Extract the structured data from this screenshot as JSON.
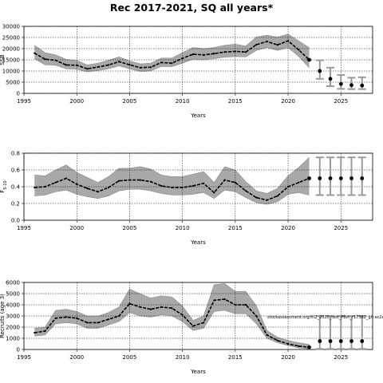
{
  "title": "Rec 2017-2021, SQ all years*",
  "chart_data": [
    {
      "type": "line",
      "xlabel": "Years",
      "ylabel": "SSB",
      "ylabel_sub": "",
      "xlim": [
        1995,
        2028
      ],
      "ylim": [
        0,
        30000
      ],
      "xticks": [
        1995,
        2000,
        2005,
        2010,
        2015,
        2020,
        2025
      ],
      "yticks": [
        0,
        5000,
        10000,
        15000,
        20000,
        25000,
        30000
      ],
      "grid": true,
      "annotation": "",
      "historical": {
        "x": [
          1996,
          1997,
          1998,
          1999,
          2000,
          2001,
          2002,
          2003,
          2004,
          2005,
          2006,
          2007,
          2008,
          2009,
          2010,
          2011,
          2012,
          2013,
          2014,
          2015,
          2016,
          2017,
          2018,
          2019,
          2020,
          2021,
          2022
        ],
        "y": [
          18000,
          15300,
          14800,
          12700,
          12600,
          11000,
          11800,
          12700,
          14200,
          12800,
          11500,
          11700,
          13800,
          13500,
          15700,
          17500,
          17200,
          17800,
          18500,
          18800,
          18500,
          21800,
          23200,
          21700,
          23500,
          19500,
          15000
        ],
        "lower": [
          15500,
          12800,
          12600,
          11000,
          10800,
          9600,
          10200,
          11000,
          12300,
          11000,
          9800,
          10000,
          12000,
          12000,
          13500,
          15300,
          15000,
          15500,
          16200,
          16500,
          16300,
          19200,
          20500,
          19200,
          20500,
          16500,
          11500
        ],
        "upper": [
          21500,
          18200,
          17200,
          15200,
          14700,
          12700,
          13500,
          14800,
          16300,
          14500,
          13200,
          13500,
          15800,
          15800,
          18200,
          20500,
          20000,
          20500,
          21500,
          22000,
          21200,
          25200,
          26000,
          25200,
          26500,
          23500,
          20500
        ]
      },
      "projection": {
        "x": [
          2022,
          2023,
          2024,
          2025,
          2026,
          2027
        ],
        "y": [
          15000,
          10000,
          6500,
          4200,
          3700,
          3500
        ],
        "lower": [
          11500,
          6500,
          3200,
          2000,
          1900,
          1900
        ],
        "upper": [
          20500,
          14800,
          11500,
          8200,
          7000,
          7200
        ]
      }
    },
    {
      "type": "line",
      "xlabel": "Years",
      "ylabel": "F",
      "ylabel_sub": "5-10",
      "xlim": [
        1995,
        2028
      ],
      "ylim": [
        0,
        0.8
      ],
      "xticks": [
        1995,
        2000,
        2005,
        2010,
        2015,
        2020,
        2025
      ],
      "yticks": [
        0.0,
        0.2,
        0.4,
        0.6,
        0.8
      ],
      "grid": true,
      "annotation": "",
      "historical": {
        "x": [
          1996,
          1997,
          1998,
          1999,
          2000,
          2001,
          2002,
          2003,
          2004,
          2005,
          2006,
          2007,
          2008,
          2009,
          2010,
          2011,
          2012,
          2013,
          2014,
          2015,
          2016,
          2017,
          2018,
          2019,
          2020,
          2021,
          2022
        ],
        "y": [
          0.39,
          0.4,
          0.45,
          0.5,
          0.43,
          0.38,
          0.34,
          0.39,
          0.47,
          0.48,
          0.48,
          0.46,
          0.41,
          0.39,
          0.39,
          0.41,
          0.44,
          0.33,
          0.48,
          0.45,
          0.35,
          0.27,
          0.24,
          0.29,
          0.4,
          0.45,
          0.5
        ],
        "lower": [
          0.29,
          0.3,
          0.34,
          0.36,
          0.31,
          0.28,
          0.26,
          0.29,
          0.35,
          0.37,
          0.37,
          0.35,
          0.32,
          0.3,
          0.3,
          0.31,
          0.33,
          0.26,
          0.36,
          0.34,
          0.27,
          0.21,
          0.19,
          0.22,
          0.31,
          0.33,
          0.3
        ],
        "upper": [
          0.54,
          0.53,
          0.6,
          0.66,
          0.57,
          0.51,
          0.45,
          0.52,
          0.62,
          0.62,
          0.64,
          0.61,
          0.54,
          0.52,
          0.52,
          0.55,
          0.58,
          0.45,
          0.64,
          0.6,
          0.46,
          0.35,
          0.32,
          0.38,
          0.53,
          0.63,
          0.75
        ]
      },
      "projection": {
        "x": [
          2022,
          2023,
          2024,
          2025,
          2026,
          2027
        ],
        "y": [
          0.5,
          0.5,
          0.5,
          0.5,
          0.5,
          0.5
        ],
        "lower": [
          0.3,
          0.3,
          0.3,
          0.3,
          0.3,
          0.3
        ],
        "upper": [
          0.75,
          0.75,
          0.75,
          0.75,
          0.75,
          0.75
        ]
      }
    },
    {
      "type": "line",
      "xlabel": "Years",
      "ylabel": "Recruits (age 3)",
      "ylabel_sub": "",
      "xlim": [
        1995,
        2028
      ],
      "ylim": [
        0,
        6000
      ],
      "xticks": [
        1995,
        2000,
        2005,
        2010,
        2015,
        2020,
        2025
      ],
      "yticks": [
        0,
        1000,
        2000,
        3000,
        4000,
        5000,
        6000
      ],
      "grid": true,
      "annotation": "stockassessment.org/fit2_2020_test_PBin_r17362_git:ec2e",
      "historical": {
        "x": [
          1996,
          1997,
          1998,
          1999,
          2000,
          2001,
          2002,
          2003,
          2004,
          2005,
          2006,
          2007,
          2008,
          2009,
          2010,
          2011,
          2012,
          2013,
          2014,
          2015,
          2016,
          2017,
          2018,
          2019,
          2020,
          2021,
          2022
        ],
        "y": [
          1500,
          1650,
          2800,
          2900,
          2800,
          2400,
          2400,
          2700,
          3000,
          4100,
          3800,
          3600,
          3800,
          3700,
          3100,
          2100,
          2400,
          4400,
          4500,
          4000,
          4000,
          3000,
          1300,
          800,
          500,
          300,
          200
        ],
        "lower": [
          1200,
          1300,
          2300,
          2400,
          2300,
          1900,
          1900,
          2200,
          2500,
          3300,
          3000,
          2900,
          3100,
          3000,
          2500,
          1700,
          1900,
          3400,
          3500,
          3200,
          3200,
          2300,
          1000,
          600,
          350,
          150,
          50
        ],
        "upper": [
          1900,
          2000,
          3500,
          3600,
          3400,
          3000,
          3000,
          3300,
          3800,
          5400,
          5000,
          4600,
          4800,
          4700,
          3900,
          2600,
          3000,
          5800,
          5900,
          5200,
          5200,
          3900,
          1700,
          1100,
          800,
          600,
          450
        ]
      },
      "projection": {
        "x": [
          2022,
          2023,
          2024,
          2025,
          2026,
          2027
        ],
        "y": [
          200,
          750,
          750,
          750,
          750,
          750
        ],
        "lower": [
          50,
          50,
          50,
          50,
          50,
          50
        ],
        "upper": [
          450,
          3000,
          3000,
          3000,
          3000,
          3000
        ]
      }
    }
  ]
}
